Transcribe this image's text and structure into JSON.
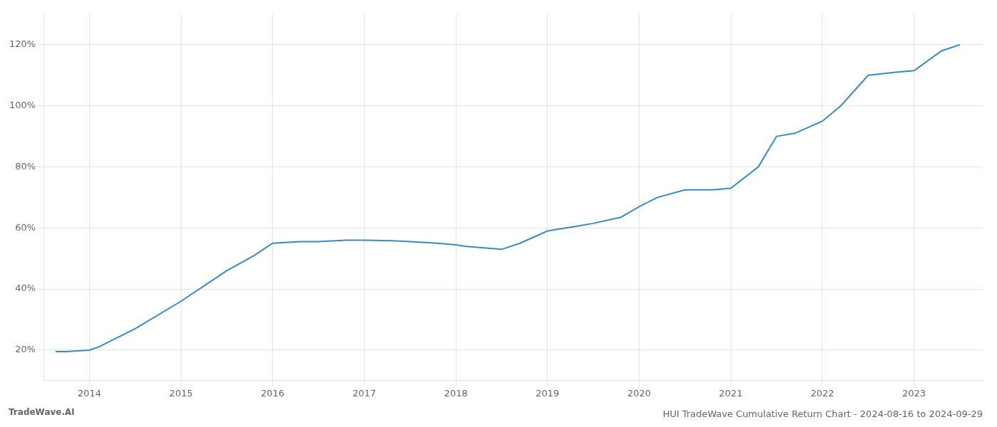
{
  "chart_data": {
    "type": "line",
    "title": "HUI TradeWave Cumulative Return Chart - 2024-08-16 to 2024-09-29",
    "annotations": [
      "TradeWave.AI"
    ],
    "x": [
      2013.63,
      2013.75,
      2014.0,
      2014.1,
      2014.5,
      2015.0,
      2015.5,
      2015.8,
      2016.0,
      2016.3,
      2016.5,
      2016.8,
      2017.0,
      2017.3,
      2017.5,
      2017.8,
      2018.0,
      2018.1,
      2018.3,
      2018.5,
      2018.7,
      2019.0,
      2019.3,
      2019.5,
      2019.8,
      2020.0,
      2020.2,
      2020.5,
      2020.8,
      2021.0,
      2021.3,
      2021.5,
      2021.7,
      2022.0,
      2022.2,
      2022.5,
      2022.8,
      2023.0,
      2023.3,
      2023.5
    ],
    "values": [
      19.5,
      19.5,
      20.0,
      21.0,
      27,
      36,
      46,
      51,
      55,
      55.5,
      55.5,
      56,
      56,
      55.8,
      55.5,
      55.0,
      54.5,
      54.0,
      53.5,
      53.0,
      55.0,
      59.0,
      60.5,
      61.5,
      63.5,
      67.0,
      70.0,
      72.5,
      72.5,
      73.0,
      80.0,
      90.0,
      91.0,
      95.0,
      100.0,
      110.0,
      111.0,
      111.5,
      118.0,
      120.0
    ],
    "color": "#3a8abf",
    "xlim": [
      2013.5,
      2023.75
    ],
    "ylim": [
      10,
      130
    ],
    "xticks": [
      2014,
      2015,
      2016,
      2017,
      2018,
      2019,
      2020,
      2021,
      2022,
      2023
    ],
    "yticks": [
      {
        "value": 20,
        "label": "20%"
      },
      {
        "value": 40,
        "label": "40%"
      },
      {
        "value": 60,
        "label": "60%"
      },
      {
        "value": 80,
        "label": "80%"
      },
      {
        "value": 100,
        "label": "100%"
      },
      {
        "value": 120,
        "label": "120%"
      }
    ],
    "grid": true
  }
}
